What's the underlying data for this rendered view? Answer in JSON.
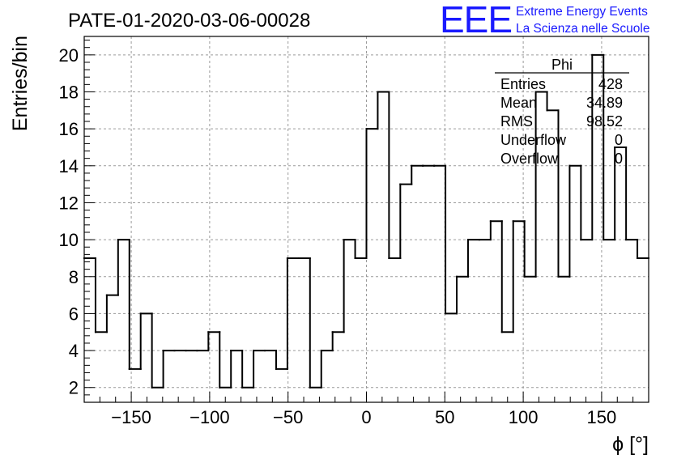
{
  "chart_data": {
    "type": "bar",
    "style": "step-histogram",
    "title": "PATE-01-2020-03-06-00028",
    "xlabel": "ϕ [°]",
    "ylabel": "Entries/bin",
    "xlim": [
      -180,
      180
    ],
    "ylim": [
      1.2,
      21.0
    ],
    "x_ticks": [
      -150,
      -100,
      -50,
      0,
      50,
      100,
      150
    ],
    "x_tick_labels": [
      "−150",
      "−100",
      "−50",
      "0",
      "50",
      "100",
      "150"
    ],
    "y_ticks": [
      2,
      4,
      6,
      8,
      10,
      12,
      14,
      16,
      18,
      20
    ],
    "y_tick_labels": [
      "2",
      "4",
      "6",
      "8",
      "10",
      "12",
      "14",
      "16",
      "18",
      "20"
    ],
    "grid": true,
    "bin_width": 7.2,
    "bin_edges_start": -180,
    "values": [
      9,
      5,
      7,
      10,
      3,
      6,
      2,
      4,
      4,
      4,
      4,
      5,
      2,
      4,
      2,
      4,
      4,
      3,
      9,
      9,
      2,
      4,
      5,
      10,
      9,
      16,
      18,
      9,
      13,
      14,
      14,
      14,
      6,
      8,
      10,
      10,
      11,
      5,
      11,
      8,
      18,
      17,
      8,
      14,
      10,
      20,
      10,
      15,
      10,
      9
    ],
    "stats_box": {
      "name": "Phi",
      "rows": [
        {
          "label": "Entries",
          "value": "428"
        },
        {
          "label": "Mean",
          "value": "34.89"
        },
        {
          "label": "RMS",
          "value": "98.52"
        },
        {
          "label": "Underflow",
          "value": "0"
        },
        {
          "label": "Overflow",
          "value": "0"
        }
      ]
    }
  },
  "logo": {
    "big": "EEE",
    "line1": "Extreme Energy Events",
    "line2": "La Scienza nelle Scuole"
  },
  "colors": {
    "logo": "#1a1aff",
    "line": "#000000",
    "grid": "#9a9a9a"
  }
}
